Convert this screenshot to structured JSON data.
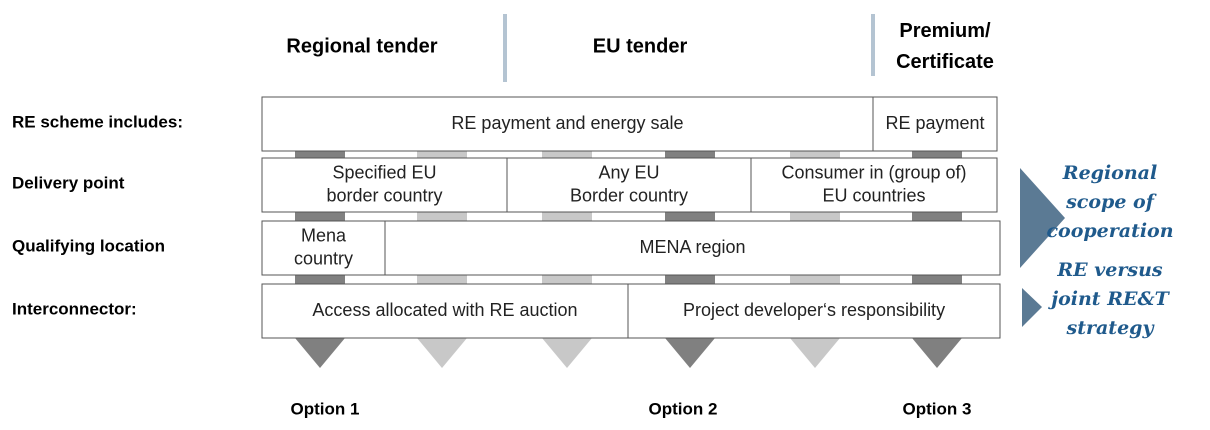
{
  "headers": [
    [
      "Regional tender"
    ],
    [
      "EU tender"
    ],
    [
      "Premium/",
      "Certificate"
    ]
  ],
  "rows": [
    {
      "label": "RE scheme includes:",
      "cells": [
        [
          "RE payment and energy sale"
        ],
        [
          "RE payment"
        ]
      ]
    },
    {
      "label": "Delivery point",
      "cells": [
        [
          "Specified  EU",
          "border country"
        ],
        [
          "Any EU",
          "Border country"
        ],
        [
          "Consumer in (group of)",
          "EU countries"
        ]
      ]
    },
    {
      "label": "Qualifying location",
      "cells": [
        [
          "Mena",
          "country"
        ],
        [
          "MENA region"
        ]
      ]
    },
    {
      "label": "Interconnector:",
      "cells": [
        [
          "Access allocated with RE auction"
        ],
        [
          "Project developer‘s responsibility"
        ]
      ]
    }
  ],
  "options": [
    "Option 1",
    "Option 2",
    "Option 3"
  ],
  "side_notes": [
    [
      "Regional",
      "scope of",
      "cooperation"
    ],
    [
      "RE versus",
      "joint RE&T",
      "strategy"
    ]
  ]
}
